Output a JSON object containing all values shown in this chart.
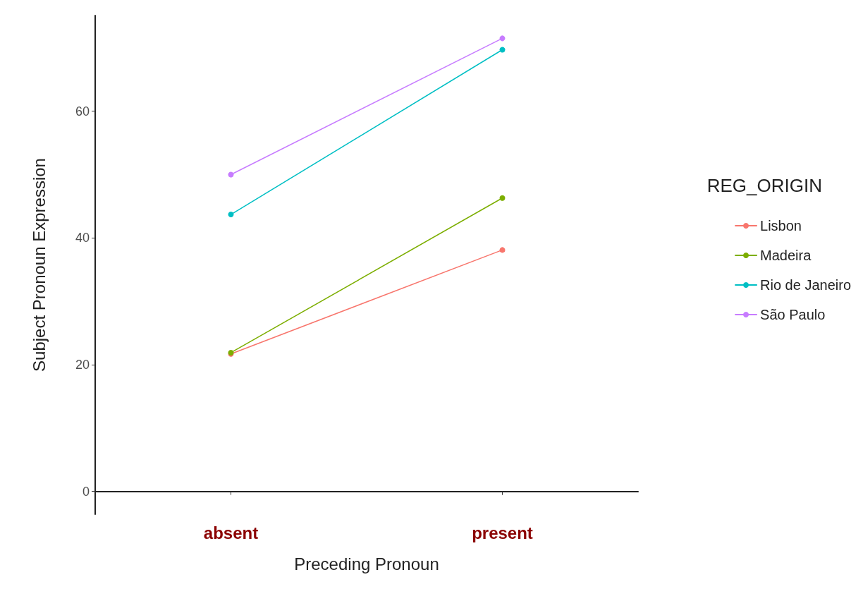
{
  "chart_data": {
    "type": "line",
    "xlabel": "Preceding Pronoun",
    "ylabel": "Subject Pronoun Expression",
    "legend_title": "REG_ORIGIN",
    "categories": [
      "absent",
      "present"
    ],
    "series": [
      {
        "name": "Lisbon",
        "color": "#f8766d",
        "values": [
          21.7,
          38.1
        ]
      },
      {
        "name": "Madeira",
        "color": "#7cae00",
        "values": [
          21.9,
          46.3
        ]
      },
      {
        "name": "Rio de Janeiro",
        "color": "#00bfc4",
        "values": [
          43.7,
          69.7
        ]
      },
      {
        "name": "São Paulo",
        "color": "#c77cff",
        "values": [
          50.0,
          71.5
        ]
      }
    ],
    "ylim": [
      -3.6,
      75.1
    ],
    "yticks": [
      0,
      20,
      40,
      60
    ],
    "grid": false,
    "legend": "right",
    "marker": "circle",
    "line_style": "solid"
  }
}
